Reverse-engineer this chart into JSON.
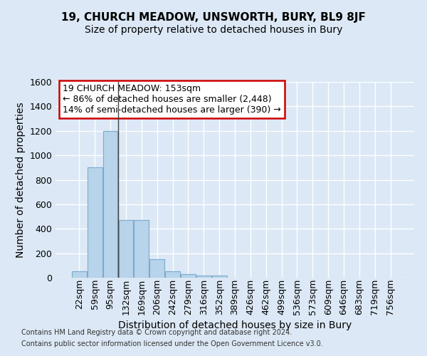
{
  "title1": "19, CHURCH MEADOW, UNSWORTH, BURY, BL9 8JF",
  "title2": "Size of property relative to detached houses in Bury",
  "xlabel": "Distribution of detached houses by size in Bury",
  "ylabel": "Number of detached properties",
  "bar_color": "#b8d4ea",
  "bar_edge_color": "#7aaace",
  "categories": [
    "22sqm",
    "59sqm",
    "95sqm",
    "132sqm",
    "169sqm",
    "206sqm",
    "242sqm",
    "279sqm",
    "316sqm",
    "352sqm",
    "389sqm",
    "426sqm",
    "462sqm",
    "499sqm",
    "536sqm",
    "573sqm",
    "609sqm",
    "646sqm",
    "683sqm",
    "719sqm",
    "756sqm"
  ],
  "values": [
    50,
    900,
    1200,
    470,
    470,
    150,
    55,
    30,
    20,
    20,
    0,
    0,
    0,
    0,
    0,
    0,
    0,
    0,
    0,
    0,
    0
  ],
  "ylim": [
    0,
    1600
  ],
  "yticks": [
    0,
    200,
    400,
    600,
    800,
    1000,
    1200,
    1400,
    1600
  ],
  "vline_x": 2.5,
  "annotation_title": "19 CHURCH MEADOW: 153sqm",
  "annotation_line1": "← 86% of detached houses are smaller (2,448)",
  "annotation_line2": "14% of semi-detached houses are larger (390) →",
  "annotation_box_color": "#ffffff",
  "annotation_box_edge_color": "#cc0000",
  "footer1": "Contains HM Land Registry data © Crown copyright and database right 2024.",
  "footer2": "Contains public sector information licensed under the Open Government Licence v3.0.",
  "bg_color": "#dce8f5",
  "grid_color": "#ffffff",
  "title1_fontsize": 11,
  "title2_fontsize": 10,
  "axis_label_fontsize": 10,
  "tick_fontsize": 9,
  "footer_fontsize": 7
}
